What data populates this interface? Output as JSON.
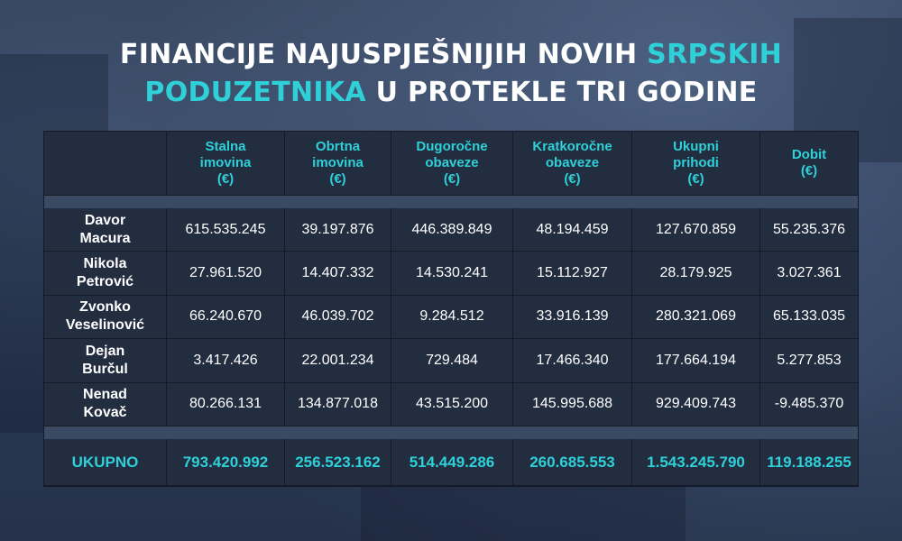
{
  "title": {
    "part1": "FINANCIJE NAJUSPJEŠNIJIH NOVIH ",
    "accent1": "SRPSKIH",
    "accent2": "PODUZETNIKA",
    "part2": " U PROTEKLE TRI GODINE"
  },
  "chart_data": {
    "type": "table",
    "columns": [
      "",
      "Stalna imovina (€)",
      "Obrtna imovina (€)",
      "Dugoročne obaveze (€)",
      "Kratkoročne obaveze (€)",
      "Ukupni prihodi (€)",
      "Dobit (€)"
    ],
    "header_lines": [
      [],
      [
        "Stalna",
        "imovina",
        "(€)"
      ],
      [
        "Obrtna",
        "imovina",
        "(€)"
      ],
      [
        "Dugoročne",
        "obaveze",
        "(€)"
      ],
      [
        "Kratkoročne",
        "obaveze",
        "(€)"
      ],
      [
        "Ukupni",
        "prihodi",
        "(€)"
      ],
      [
        "Dobit",
        "(€)"
      ]
    ],
    "rows": [
      {
        "name": [
          "Davor",
          "Macura"
        ],
        "values": [
          "615.535.245",
          "39.197.876",
          "446.389.849",
          "48.194.459",
          "127.670.859",
          "55.235.376"
        ]
      },
      {
        "name": [
          "Nikola",
          "Petrović"
        ],
        "values": [
          "27.961.520",
          "14.407.332",
          "14.530.241",
          "15.112.927",
          "28.179.925",
          "3.027.361"
        ]
      },
      {
        "name": [
          "Zvonko",
          "Veselinović"
        ],
        "values": [
          "66.240.670",
          "46.039.702",
          "9.284.512",
          "33.916.139",
          "280.321.069",
          "65.133.035"
        ]
      },
      {
        "name": [
          "Dejan",
          "Burčul"
        ],
        "values": [
          "3.417.426",
          "22.001.234",
          "729.484",
          "17.466.340",
          "177.664.194",
          "5.277.853"
        ]
      },
      {
        "name": [
          "Nenad",
          "Kovač"
        ],
        "values": [
          "80.266.131",
          "134.877.018",
          "43.515.200",
          "145.995.688",
          "929.409.743",
          "-9.485.370"
        ]
      }
    ],
    "total": {
      "label": "UKUPNO",
      "values": [
        "793.420.992",
        "256.523.162",
        "514.449.286",
        "260.685.553",
        "1.543.245.790",
        "119.188.255"
      ]
    }
  },
  "colors": {
    "accent": "#2fd0d8",
    "table_bg": "#222d40",
    "text": "#ffffff"
  }
}
